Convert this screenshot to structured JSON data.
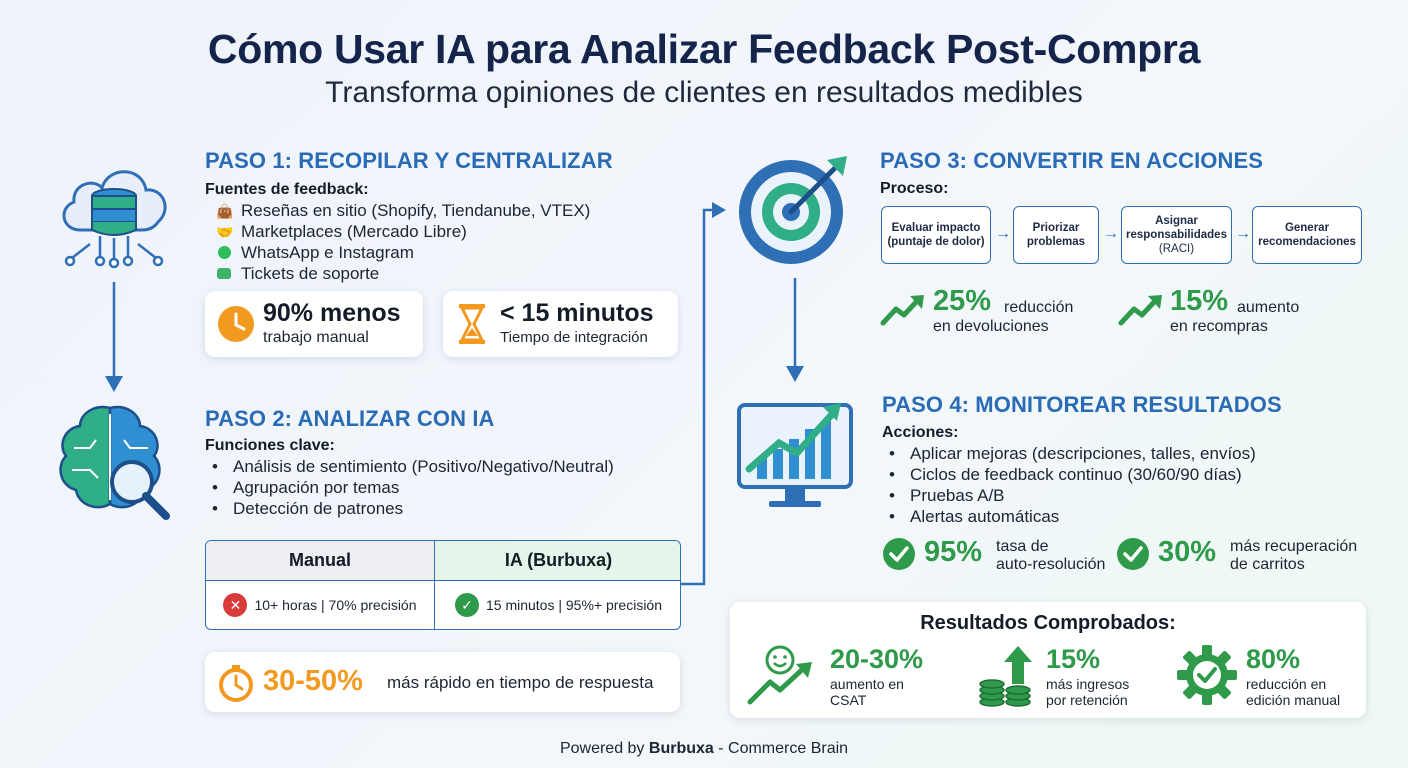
{
  "header": {
    "title": "Cómo Usar IA para Analizar Feedback Post-Compra",
    "subtitle": "Transforma opiniones de clientes en resultados medibles"
  },
  "step1": {
    "title": "PASO 1: RECOPILAR Y CENTRALIZAR",
    "sources_label": "Fuentes de feedback:",
    "sources": [
      {
        "icon": "shopping-bag-icon",
        "text": "Reseñas en sitio (Shopify, Tiendanube, VTEX)"
      },
      {
        "icon": "handshake-icon",
        "text": "Marketplaces (Mercado Libre)"
      },
      {
        "icon": "whatsapp-icon",
        "text": "WhatsApp e Instagram"
      },
      {
        "icon": "chat-bubble-icon",
        "text": "Tickets de soporte"
      }
    ],
    "stat_manual": {
      "value": "90% menos",
      "label": "trabajo manual"
    },
    "stat_time": {
      "value": "< 15 minutos",
      "label": "Tiempo de integración"
    }
  },
  "step2": {
    "title": "PASO 2: ANALIZAR CON IA",
    "functions_label": "Funciones clave:",
    "functions": [
      "Análisis de sentimiento (Positivo/Negativo/Neutral)",
      "Agrupación por temas",
      "Detección de patrones"
    ],
    "comparison": {
      "manual_header": "Manual",
      "ai_header": "IA (Burbuxa)",
      "manual_value": "10+ horas | 70% precisión",
      "ai_value": "15 minutos | 95%+ precisión"
    },
    "speed": {
      "value": "30-50%",
      "label": "más rápido en tiempo de respuesta"
    }
  },
  "step3": {
    "title": "PASO 3: CONVERTIR EN ACCIONES",
    "process_label": "Proceso:",
    "process": [
      {
        "line1": "Evaluar impacto",
        "line2": "(puntaje de dolor)",
        "line3": ""
      },
      {
        "line1": "Priorizar",
        "line2": "problemas",
        "line3": ""
      },
      {
        "line1": "Asignar",
        "line2": "responsabilidades",
        "line3": "(RACI)"
      },
      {
        "line1": "Generar",
        "line2": "recomendaciones",
        "line3": ""
      }
    ],
    "metrics": [
      {
        "value": "25%",
        "line1": "reducción",
        "line2": "en devoluciones"
      },
      {
        "value": "15%",
        "line1": "aumento",
        "line2": "en recompras"
      }
    ]
  },
  "step4": {
    "title": "PASO 4: MONITOREAR RESULTADOS",
    "actions_label": "Acciones:",
    "actions": [
      "Aplicar mejoras (descripciones, talles, envíos)",
      "Ciclos de feedback continuo (30/60/90 días)",
      "Pruebas A/B",
      "Alertas automáticas"
    ],
    "metrics": [
      {
        "value": "95%",
        "line1": "tasa de",
        "line2": "auto-resolución"
      },
      {
        "value": "30%",
        "line1": "más recuperación",
        "line2": "de carritos"
      }
    ]
  },
  "results": {
    "title": "Resultados Comprobados:",
    "items": [
      {
        "icon": "smile-growth-icon",
        "value": "20-30%",
        "line1": "aumento en",
        "line2": "CSAT"
      },
      {
        "icon": "coins-up-icon",
        "value": "15%",
        "line1": "más ingresos",
        "line2": "por retención"
      },
      {
        "icon": "gear-check-icon",
        "value": "80%",
        "line1": "reducción en",
        "line2": "edición manual"
      }
    ]
  },
  "footer": {
    "prefix": "Powered by",
    "brand": "Burbuxa",
    "suffix": "- Commerce Brain"
  },
  "colors": {
    "title": "#14244a",
    "step_title": "#2a6bb5",
    "accent_green": "#2e9a4a",
    "accent_orange": "#f29a1f",
    "accent_blue": "#2f6fb6",
    "error_red": "#d93b3b"
  }
}
